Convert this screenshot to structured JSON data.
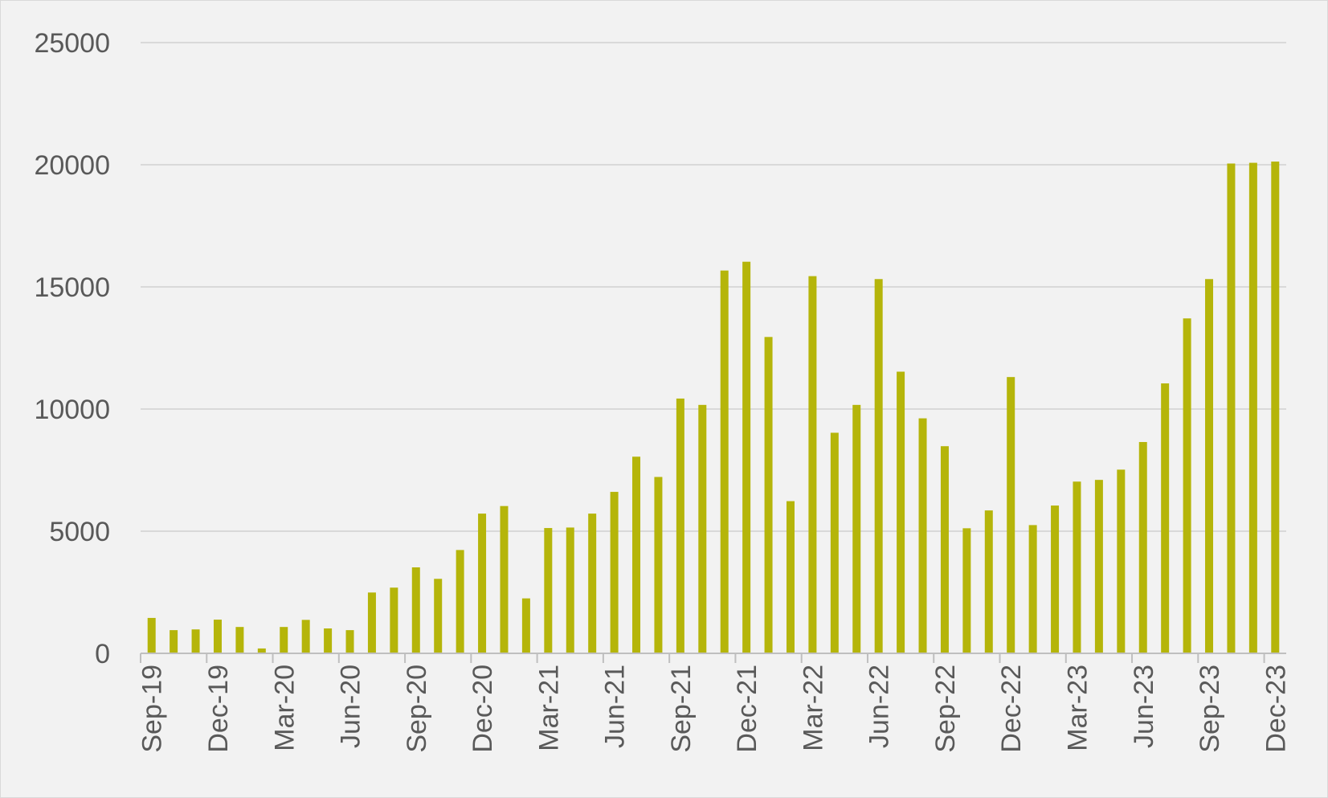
{
  "chart_data": {
    "type": "bar",
    "title": "",
    "xlabel": "",
    "ylabel": "",
    "ylim": [
      0,
      25000
    ],
    "yticks": [
      "0",
      "5000",
      "10000",
      "15000",
      "20000",
      "25000"
    ],
    "grid": true,
    "legend": "none",
    "tick_labels": [
      "Sep-19",
      "Dec-19",
      "Mar-20",
      "Jun-20",
      "Sep-20",
      "Dec-20",
      "Mar-21",
      "Jun-21",
      "Sep-21",
      "Dec-21",
      "Mar-22",
      "Jun-22",
      "Sep-22",
      "Dec-22",
      "Mar-23",
      "Jun-23",
      "Sep-23",
      "Dec-23"
    ],
    "categories": [
      "Sep-19",
      "Oct-19",
      "Nov-19",
      "Dec-19",
      "Jan-20",
      "Feb-20",
      "Mar-20",
      "Apr-20",
      "May-20",
      "Jun-20",
      "Jul-20",
      "Aug-20",
      "Sep-20",
      "Oct-20",
      "Nov-20",
      "Dec-20",
      "Jan-21",
      "Feb-21",
      "Mar-21",
      "Apr-21",
      "May-21",
      "Jun-21",
      "Jul-21",
      "Aug-21",
      "Sep-21",
      "Oct-21",
      "Nov-21",
      "Dec-21",
      "Jan-22",
      "Feb-22",
      "Mar-22",
      "Apr-22",
      "May-22",
      "Jun-22",
      "Jul-22",
      "Aug-22",
      "Sep-22",
      "Oct-22",
      "Nov-22",
      "Dec-22",
      "Jan-23",
      "Feb-23",
      "Mar-23",
      "Apr-23",
      "May-23",
      "Jun-23",
      "Jul-23",
      "Aug-23",
      "Sep-23",
      "Oct-23",
      "Nov-23",
      "Dec-23"
    ],
    "values": [
      1450,
      950,
      980,
      1380,
      1080,
      200,
      1080,
      1370,
      1020,
      950,
      2490,
      2690,
      3520,
      3050,
      4230,
      5720,
      6030,
      2250,
      5130,
      5150,
      5720,
      6610,
      8050,
      7220,
      10430,
      10170,
      15670,
      16030,
      12950,
      6230,
      15440,
      9030,
      10170,
      15320,
      11530,
      9620,
      8480,
      5120,
      5850,
      11310,
      5250,
      6050,
      7030,
      7100,
      7520,
      8650,
      11050,
      13710,
      15320,
      20050,
      20080,
      20130
    ],
    "colors": {
      "bar": "#b5b50a",
      "grid": "#d9d9d9",
      "axis": "#bfbfbf",
      "tick_text": "#595959",
      "background": "#f2f2f2"
    }
  }
}
